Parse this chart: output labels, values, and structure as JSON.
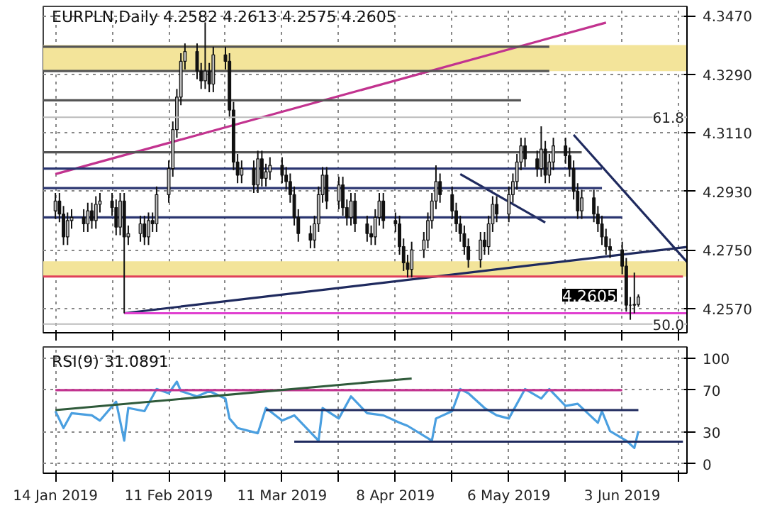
{
  "chart_data": [
    {
      "type": "candlestick",
      "title": "EURPLN,Daily  4.2582 4.2613 4.2575 4.2605",
      "x": [
        "2019-01-14",
        "2019-01-15",
        "2019-01-16",
        "2019-01-17",
        "2019-01-18",
        "2019-01-21",
        "2019-01-22",
        "2019-01-23",
        "2019-01-24",
        "2019-01-25",
        "2019-01-28",
        "2019-01-29",
        "2019-01-30",
        "2019-01-31",
        "2019-02-01",
        "2019-02-04",
        "2019-02-05",
        "2019-02-06",
        "2019-02-07",
        "2019-02-08",
        "2019-02-11",
        "2019-02-12",
        "2019-02-13",
        "2019-02-14",
        "2019-02-15",
        "2019-02-18",
        "2019-02-19",
        "2019-02-20",
        "2019-02-21",
        "2019-02-22",
        "2019-02-25",
        "2019-02-26",
        "2019-02-27",
        "2019-02-28",
        "2019-03-01",
        "2019-03-04",
        "2019-03-05",
        "2019-03-06",
        "2019-03-07",
        "2019-03-08",
        "2019-03-11",
        "2019-03-12",
        "2019-03-13",
        "2019-03-14",
        "2019-03-15",
        "2019-03-18",
        "2019-03-19",
        "2019-03-20",
        "2019-03-21",
        "2019-03-22",
        "2019-03-25",
        "2019-03-26",
        "2019-03-27",
        "2019-03-28",
        "2019-03-29",
        "2019-04-01",
        "2019-04-02",
        "2019-04-03",
        "2019-04-04",
        "2019-04-05",
        "2019-04-08",
        "2019-04-09",
        "2019-04-10",
        "2019-04-11",
        "2019-04-12",
        "2019-04-15",
        "2019-04-16",
        "2019-04-17",
        "2019-04-18",
        "2019-04-19",
        "2019-04-22",
        "2019-04-23",
        "2019-04-24",
        "2019-04-25",
        "2019-04-26",
        "2019-04-29",
        "2019-04-30",
        "2019-05-01",
        "2019-05-02",
        "2019-05-03",
        "2019-05-06",
        "2019-05-07",
        "2019-05-08",
        "2019-05-09",
        "2019-05-10",
        "2019-05-13",
        "2019-05-14",
        "2019-05-15",
        "2019-05-16",
        "2019-05-17",
        "2019-05-20",
        "2019-05-21",
        "2019-05-22",
        "2019-05-23",
        "2019-05-24",
        "2019-05-27",
        "2019-05-28",
        "2019-05-29",
        "2019-05-30",
        "2019-05-31",
        "2019-06-03",
        "2019-06-04",
        "2019-06-05",
        "2019-06-06",
        "2019-06-07"
      ],
      "ohlc": [
        [
          4.287,
          4.2925,
          4.2845,
          4.29
        ],
        [
          4.29,
          4.2925,
          4.2835,
          4.286
        ],
        [
          4.286,
          4.2885,
          4.2765,
          4.279
        ],
        [
          4.279,
          4.2865,
          4.2765,
          4.284
        ],
        [
          4.284,
          4.2875,
          4.2815,
          4.285
        ],
        [
          4.285,
          4.2875,
          4.2805,
          4.283
        ],
        [
          4.283,
          4.2895,
          4.2805,
          4.287
        ],
        [
          4.287,
          4.2895,
          4.2815,
          4.284
        ],
        [
          4.284,
          4.2915,
          4.2815,
          4.289
        ],
        [
          4.289,
          4.2925,
          4.2865,
          4.29
        ],
        [
          4.29,
          4.2925,
          4.2855,
          4.288
        ],
        [
          4.288,
          4.2905,
          4.2795,
          4.282
        ],
        [
          4.282,
          4.2925,
          4.2795,
          4.29
        ],
        [
          4.29,
          4.2925,
          4.2555,
          4.279
        ],
        [
          4.279,
          4.2825,
          4.2765,
          4.28
        ],
        [
          4.28,
          4.2855,
          4.2775,
          4.283
        ],
        [
          4.283,
          4.2855,
          4.2765,
          4.279
        ],
        [
          4.279,
          4.2865,
          4.2765,
          4.284
        ],
        [
          4.284,
          4.2865,
          4.2805,
          4.283
        ],
        [
          4.283,
          4.2945,
          4.2805,
          4.292
        ],
        [
          4.292,
          4.3025,
          4.2895,
          4.3
        ],
        [
          4.3,
          4.3145,
          4.2975,
          4.312
        ],
        [
          4.312,
          4.3245,
          4.3095,
          4.322
        ],
        [
          4.322,
          4.3355,
          4.3195,
          4.333
        ],
        [
          4.333,
          4.3385,
          4.3305,
          4.336
        ],
        [
          4.336,
          4.3385,
          4.3275,
          4.33
        ],
        [
          4.33,
          4.3325,
          4.3245,
          4.327
        ],
        [
          4.327,
          4.345,
          4.3245,
          4.33
        ],
        [
          4.33,
          4.3325,
          4.3235,
          4.326
        ],
        [
          4.326,
          4.3375,
          4.3235,
          4.335
        ],
        [
          4.335,
          4.3375,
          4.3305,
          4.333
        ],
        [
          4.333,
          4.3355,
          4.3155,
          4.318
        ],
        [
          4.318,
          4.3205,
          4.2995,
          4.302
        ],
        [
          4.302,
          4.3045,
          4.2955,
          4.298
        ],
        [
          4.298,
          4.3025,
          4.2955,
          4.3
        ],
        [
          4.3,
          4.3025,
          4.2925,
          4.295
        ],
        [
          4.295,
          4.3055,
          4.2925,
          4.303
        ],
        [
          4.303,
          4.3055,
          4.2945,
          4.297
        ],
        [
          4.297,
          4.3015,
          4.2945,
          4.299
        ],
        [
          4.299,
          4.3035,
          4.2965,
          4.301
        ],
        [
          4.301,
          4.3035,
          4.2955,
          4.298
        ],
        [
          4.298,
          4.3005,
          4.2935,
          4.296
        ],
        [
          4.296,
          4.2985,
          4.2895,
          4.292
        ],
        [
          4.292,
          4.2945,
          4.2825,
          4.285
        ],
        [
          4.285,
          4.2875,
          4.2775,
          4.28
        ],
        [
          4.28,
          4.2825,
          4.2755,
          4.278
        ],
        [
          4.278,
          4.2855,
          4.2755,
          4.283
        ],
        [
          4.283,
          4.2945,
          4.2805,
          4.292
        ],
        [
          4.292,
          4.3005,
          4.2895,
          4.298
        ],
        [
          4.298,
          4.3005,
          4.2875,
          4.29
        ],
        [
          4.29,
          4.2975,
          4.2875,
          4.295
        ],
        [
          4.295,
          4.2975,
          4.2855,
          4.288
        ],
        [
          4.288,
          4.2905,
          4.2825,
          4.285
        ],
        [
          4.285,
          4.2925,
          4.2825,
          4.29
        ],
        [
          4.29,
          4.2925,
          4.2805,
          4.283
        ],
        [
          4.283,
          4.2855,
          4.2775,
          4.28
        ],
        [
          4.28,
          4.2825,
          4.2765,
          4.279
        ],
        [
          4.279,
          4.2875,
          4.2765,
          4.285
        ],
        [
          4.285,
          4.2925,
          4.2825,
          4.29
        ],
        [
          4.29,
          4.2925,
          4.2815,
          4.284
        ],
        [
          4.284,
          4.2865,
          4.2805,
          4.283
        ],
        [
          4.283,
          4.2855,
          4.2735,
          4.276
        ],
        [
          4.276,
          4.2785,
          4.2685,
          4.271
        ],
        [
          4.271,
          4.2735,
          4.2665,
          4.269
        ],
        [
          4.269,
          4.2775,
          4.2665,
          4.275
        ],
        [
          4.275,
          4.2805,
          4.2725,
          4.278
        ],
        [
          4.278,
          4.2865,
          4.2755,
          4.284
        ],
        [
          4.284,
          4.2925,
          4.2815,
          4.29
        ],
        [
          4.29,
          4.301,
          4.2875,
          4.296
        ],
        [
          4.296,
          4.2985,
          4.2895,
          4.292
        ],
        [
          4.292,
          4.2945,
          4.2845,
          4.287
        ],
        [
          4.287,
          4.2895,
          4.2805,
          4.283
        ],
        [
          4.283,
          4.2855,
          4.2775,
          4.28
        ],
        [
          4.28,
          4.2825,
          4.2735,
          4.276
        ],
        [
          4.276,
          4.2785,
          4.2695,
          4.272
        ],
        [
          4.272,
          4.2805,
          4.2695,
          4.278
        ],
        [
          4.278,
          4.2805,
          4.2735,
          4.276
        ],
        [
          4.276,
          4.2855,
          4.2735,
          4.283
        ],
        [
          4.283,
          4.2915,
          4.2805,
          4.289
        ],
        [
          4.289,
          4.2915,
          4.2835,
          4.286
        ],
        [
          4.286,
          4.2945,
          4.2835,
          4.292
        ],
        [
          4.292,
          4.2985,
          4.2895,
          4.296
        ],
        [
          4.296,
          4.3045,
          4.2935,
          4.302
        ],
        [
          4.302,
          4.3095,
          4.2995,
          4.307
        ],
        [
          4.307,
          4.3095,
          4.3005,
          4.303
        ],
        [
          4.303,
          4.3055,
          4.2975,
          4.3
        ],
        [
          4.3,
          4.313,
          4.2975,
          4.306
        ],
        [
          4.306,
          4.3085,
          4.2955,
          4.298
        ],
        [
          4.298,
          4.3045,
          4.2955,
          4.302
        ],
        [
          4.302,
          4.3095,
          4.2995,
          4.307
        ],
        [
          4.307,
          4.3095,
          4.3015,
          4.304
        ],
        [
          4.304,
          4.3065,
          4.2975,
          4.3
        ],
        [
          4.3,
          4.3025,
          4.2905,
          4.293
        ],
        [
          4.293,
          4.2955,
          4.2845,
          4.287
        ],
        [
          4.287,
          4.2935,
          4.2845,
          4.291
        ],
        [
          4.291,
          4.2935,
          4.2835,
          4.286
        ],
        [
          4.286,
          4.2885,
          4.2805,
          4.283
        ],
        [
          4.283,
          4.2855,
          4.2765,
          4.279
        ],
        [
          4.279,
          4.2815,
          4.2735,
          4.276
        ],
        [
          4.276,
          4.2785,
          4.2725,
          4.275
        ],
        [
          4.275,
          4.2775,
          4.2675,
          4.27
        ],
        [
          4.27,
          4.2725,
          4.256,
          4.258
        ],
        [
          4.258,
          4.2605,
          4.2535,
          4.258
        ],
        [
          4.258,
          4.268,
          4.2555,
          4.2582
        ],
        [
          4.2582,
          4.2613,
          4.2575,
          4.2605
        ]
      ],
      "series": [
        {
          "type": "line",
          "color": "#c2338f",
          "x": [
            "2019-01-14",
            "2019-05-30"
          ],
          "values": [
            4.2983,
            4.3449
          ]
        },
        {
          "type": "line",
          "color": "#1f2a5e",
          "x": [
            "2019-01-31",
            "2019-06-19"
          ],
          "values": [
            4.2555,
            4.2759
          ]
        },
        {
          "type": "line",
          "color": "#1f2a5e",
          "x": [
            "2019-05-22",
            "2019-06-19"
          ],
          "values": [
            4.3104,
            4.2713
          ]
        },
        {
          "type": "line",
          "color": "#1f2a5e",
          "x": [
            "2019-04-24",
            "2019-05-15"
          ],
          "values": [
            4.2983,
            4.2834
          ]
        },
        {
          "type": "line",
          "color": "#555555",
          "x": [
            "2019-01-11",
            "2019-05-16"
          ],
          "values": [
            4.3375,
            4.3375
          ]
        },
        {
          "type": "line",
          "color": "#555555",
          "x": [
            "2019-01-11",
            "2019-05-16"
          ],
          "values": [
            4.33,
            4.33
          ]
        },
        {
          "type": "line",
          "color": "#555555",
          "x": [
            "2019-01-11",
            "2019-05-09"
          ],
          "values": [
            4.321,
            4.321
          ]
        },
        {
          "type": "line",
          "color": "#555555",
          "x": [
            "2019-01-11",
            "2019-05-24"
          ],
          "values": [
            4.305,
            4.305
          ]
        },
        {
          "type": "line",
          "color": "#2a3570",
          "x": [
            "2019-01-11",
            "2019-05-29"
          ],
          "values": [
            4.3,
            4.3
          ]
        },
        {
          "type": "line",
          "color": "#2a3570",
          "x": [
            "2019-01-11",
            "2019-05-29"
          ],
          "values": [
            4.294,
            4.294
          ]
        },
        {
          "type": "line",
          "color": "#2a3570",
          "x": [
            "2019-01-11",
            "2019-06-03"
          ],
          "values": [
            4.285,
            4.285
          ]
        },
        {
          "type": "line",
          "color": "#e0405a",
          "x": [
            "2019-01-11",
            "2019-06-18"
          ],
          "values": [
            4.2668,
            4.2668
          ]
        },
        {
          "type": "line",
          "color": "#e040d0",
          "x": [
            "2019-01-31",
            "2019-06-19"
          ],
          "values": [
            4.2555,
            4.2555
          ]
        }
      ],
      "bands": [
        {
          "axis": "y",
          "from": 4.33,
          "to": 4.338,
          "color": "#f3e49a"
        },
        {
          "axis": "y",
          "from": 4.2668,
          "to": 4.2715,
          "color": "#f3e49a"
        }
      ],
      "ref_lines": [
        {
          "axis": "y",
          "value": 4.3158,
          "color": "#bbbbbb"
        },
        {
          "axis": "y",
          "value": 4.2522,
          "color": "#bbbbbb"
        }
      ],
      "annotations": [
        {
          "text": "61.8",
          "y": 4.3158
        },
        {
          "text": "50.0",
          "y": 4.2522
        },
        "4.2605"
      ],
      "xlim": [
        "2019-01-11",
        "2019-06-19"
      ],
      "ylim": [
        4.2495,
        4.3499
      ],
      "xticks": [
        {
          "value": "2019-01-14",
          "label": null
        },
        {
          "value": "2019-01-28",
          "label": null
        },
        {
          "value": "2019-02-11",
          "label": null
        },
        {
          "value": "2019-02-25",
          "label": null
        },
        {
          "value": "2019-03-11",
          "label": null
        },
        {
          "value": "2019-03-25",
          "label": null
        },
        {
          "value": "2019-04-08",
          "label": null
        },
        {
          "value": "2019-04-22",
          "label": null
        },
        {
          "value": "2019-05-06",
          "label": null
        },
        {
          "value": "2019-05-20",
          "label": null
        },
        {
          "value": "2019-06-03",
          "label": null
        },
        {
          "value": "2019-06-17",
          "label": null
        }
      ],
      "yticks": [
        {
          "value": 4.257,
          "label": "4.2570"
        },
        {
          "value": 4.275,
          "label": "4.2750"
        },
        {
          "value": 4.293,
          "label": "4.2930"
        },
        {
          "value": 4.311,
          "label": "4.3110"
        },
        {
          "value": 4.329,
          "label": "4.3290"
        },
        {
          "value": 4.347,
          "label": "4.3470"
        }
      ],
      "tick_labels": "y",
      "grid": true
    },
    {
      "type": "line",
      "title": "RSI(9) 31.0891",
      "series": [
        {
          "color": "#4a9fe0",
          "x": [
            "2019-01-14",
            "2019-01-16",
            "2019-01-18",
            "2019-01-23",
            "2019-01-25",
            "2019-01-29",
            "2019-01-31",
            "2019-02-01",
            "2019-02-05",
            "2019-02-08",
            "2019-02-11",
            "2019-02-13",
            "2019-02-14",
            "2019-02-18",
            "2019-02-21",
            "2019-02-25",
            "2019-02-26",
            "2019-02-28",
            "2019-03-05",
            "2019-03-07",
            "2019-03-11",
            "2019-03-14",
            "2019-03-20",
            "2019-03-21",
            "2019-03-25",
            "2019-03-28",
            "2019-04-01",
            "2019-04-05",
            "2019-04-09",
            "2019-04-11",
            "2019-04-17",
            "2019-04-18",
            "2019-04-22",
            "2019-04-24",
            "2019-04-26",
            "2019-04-30",
            "2019-05-03",
            "2019-05-06",
            "2019-05-09",
            "2019-05-10",
            "2019-05-14",
            "2019-05-16",
            "2019-05-20",
            "2019-05-23",
            "2019-05-28",
            "2019-05-29",
            "2019-05-31",
            "2019-06-04",
            "2019-06-06",
            "2019-06-07"
          ],
          "values": [
            50,
            34,
            48,
            46,
            41,
            59,
            22,
            53,
            50,
            71,
            67,
            78,
            69,
            64,
            69,
            62,
            43,
            34,
            29,
            53,
            41,
            46,
            22,
            53,
            43,
            64,
            48,
            46,
            39,
            36,
            22,
            43,
            50,
            71,
            67,
            53,
            46,
            43,
            64,
            71,
            62,
            71,
            55,
            57,
            39,
            50,
            31,
            22,
            15,
            31
          ]
        },
        {
          "color": "#c2338f",
          "x": [
            "2019-01-14",
            "2019-06-03"
          ],
          "values": [
            70,
            70
          ]
        },
        {
          "color": "#2f5a3a",
          "x": [
            "2019-01-14",
            "2019-04-12"
          ],
          "values": [
            51,
            81
          ]
        },
        {
          "color": "#1f2a5e",
          "x": [
            "2019-03-07",
            "2019-06-07"
          ],
          "values": [
            51,
            51
          ]
        },
        {
          "color": "#1f2a5e",
          "x": [
            "2019-03-14",
            "2019-06-18"
          ],
          "values": [
            21,
            21
          ]
        }
      ],
      "xlim": [
        "2019-01-11",
        "2019-06-19"
      ],
      "ylim": [
        -9,
        111
      ],
      "xticks": [
        {
          "value": "2019-01-14",
          "label": "14 Jan 2019"
        },
        {
          "value": "2019-01-28",
          "label": null
        },
        {
          "value": "2019-02-11",
          "label": "11 Feb 2019"
        },
        {
          "value": "2019-02-25",
          "label": null
        },
        {
          "value": "2019-03-11",
          "label": "11 Mar 2019"
        },
        {
          "value": "2019-03-25",
          "label": null
        },
        {
          "value": "2019-04-08",
          "label": "8 Apr 2019"
        },
        {
          "value": "2019-04-22",
          "label": null
        },
        {
          "value": "2019-05-06",
          "label": "6 May 2019"
        },
        {
          "value": "2019-05-20",
          "label": null
        },
        {
          "value": "2019-06-03",
          "label": "3 Jun 2019"
        },
        {
          "value": "2019-06-17",
          "label": null
        }
      ],
      "yticks": [
        0,
        30,
        70,
        100
      ],
      "grid": true
    }
  ]
}
